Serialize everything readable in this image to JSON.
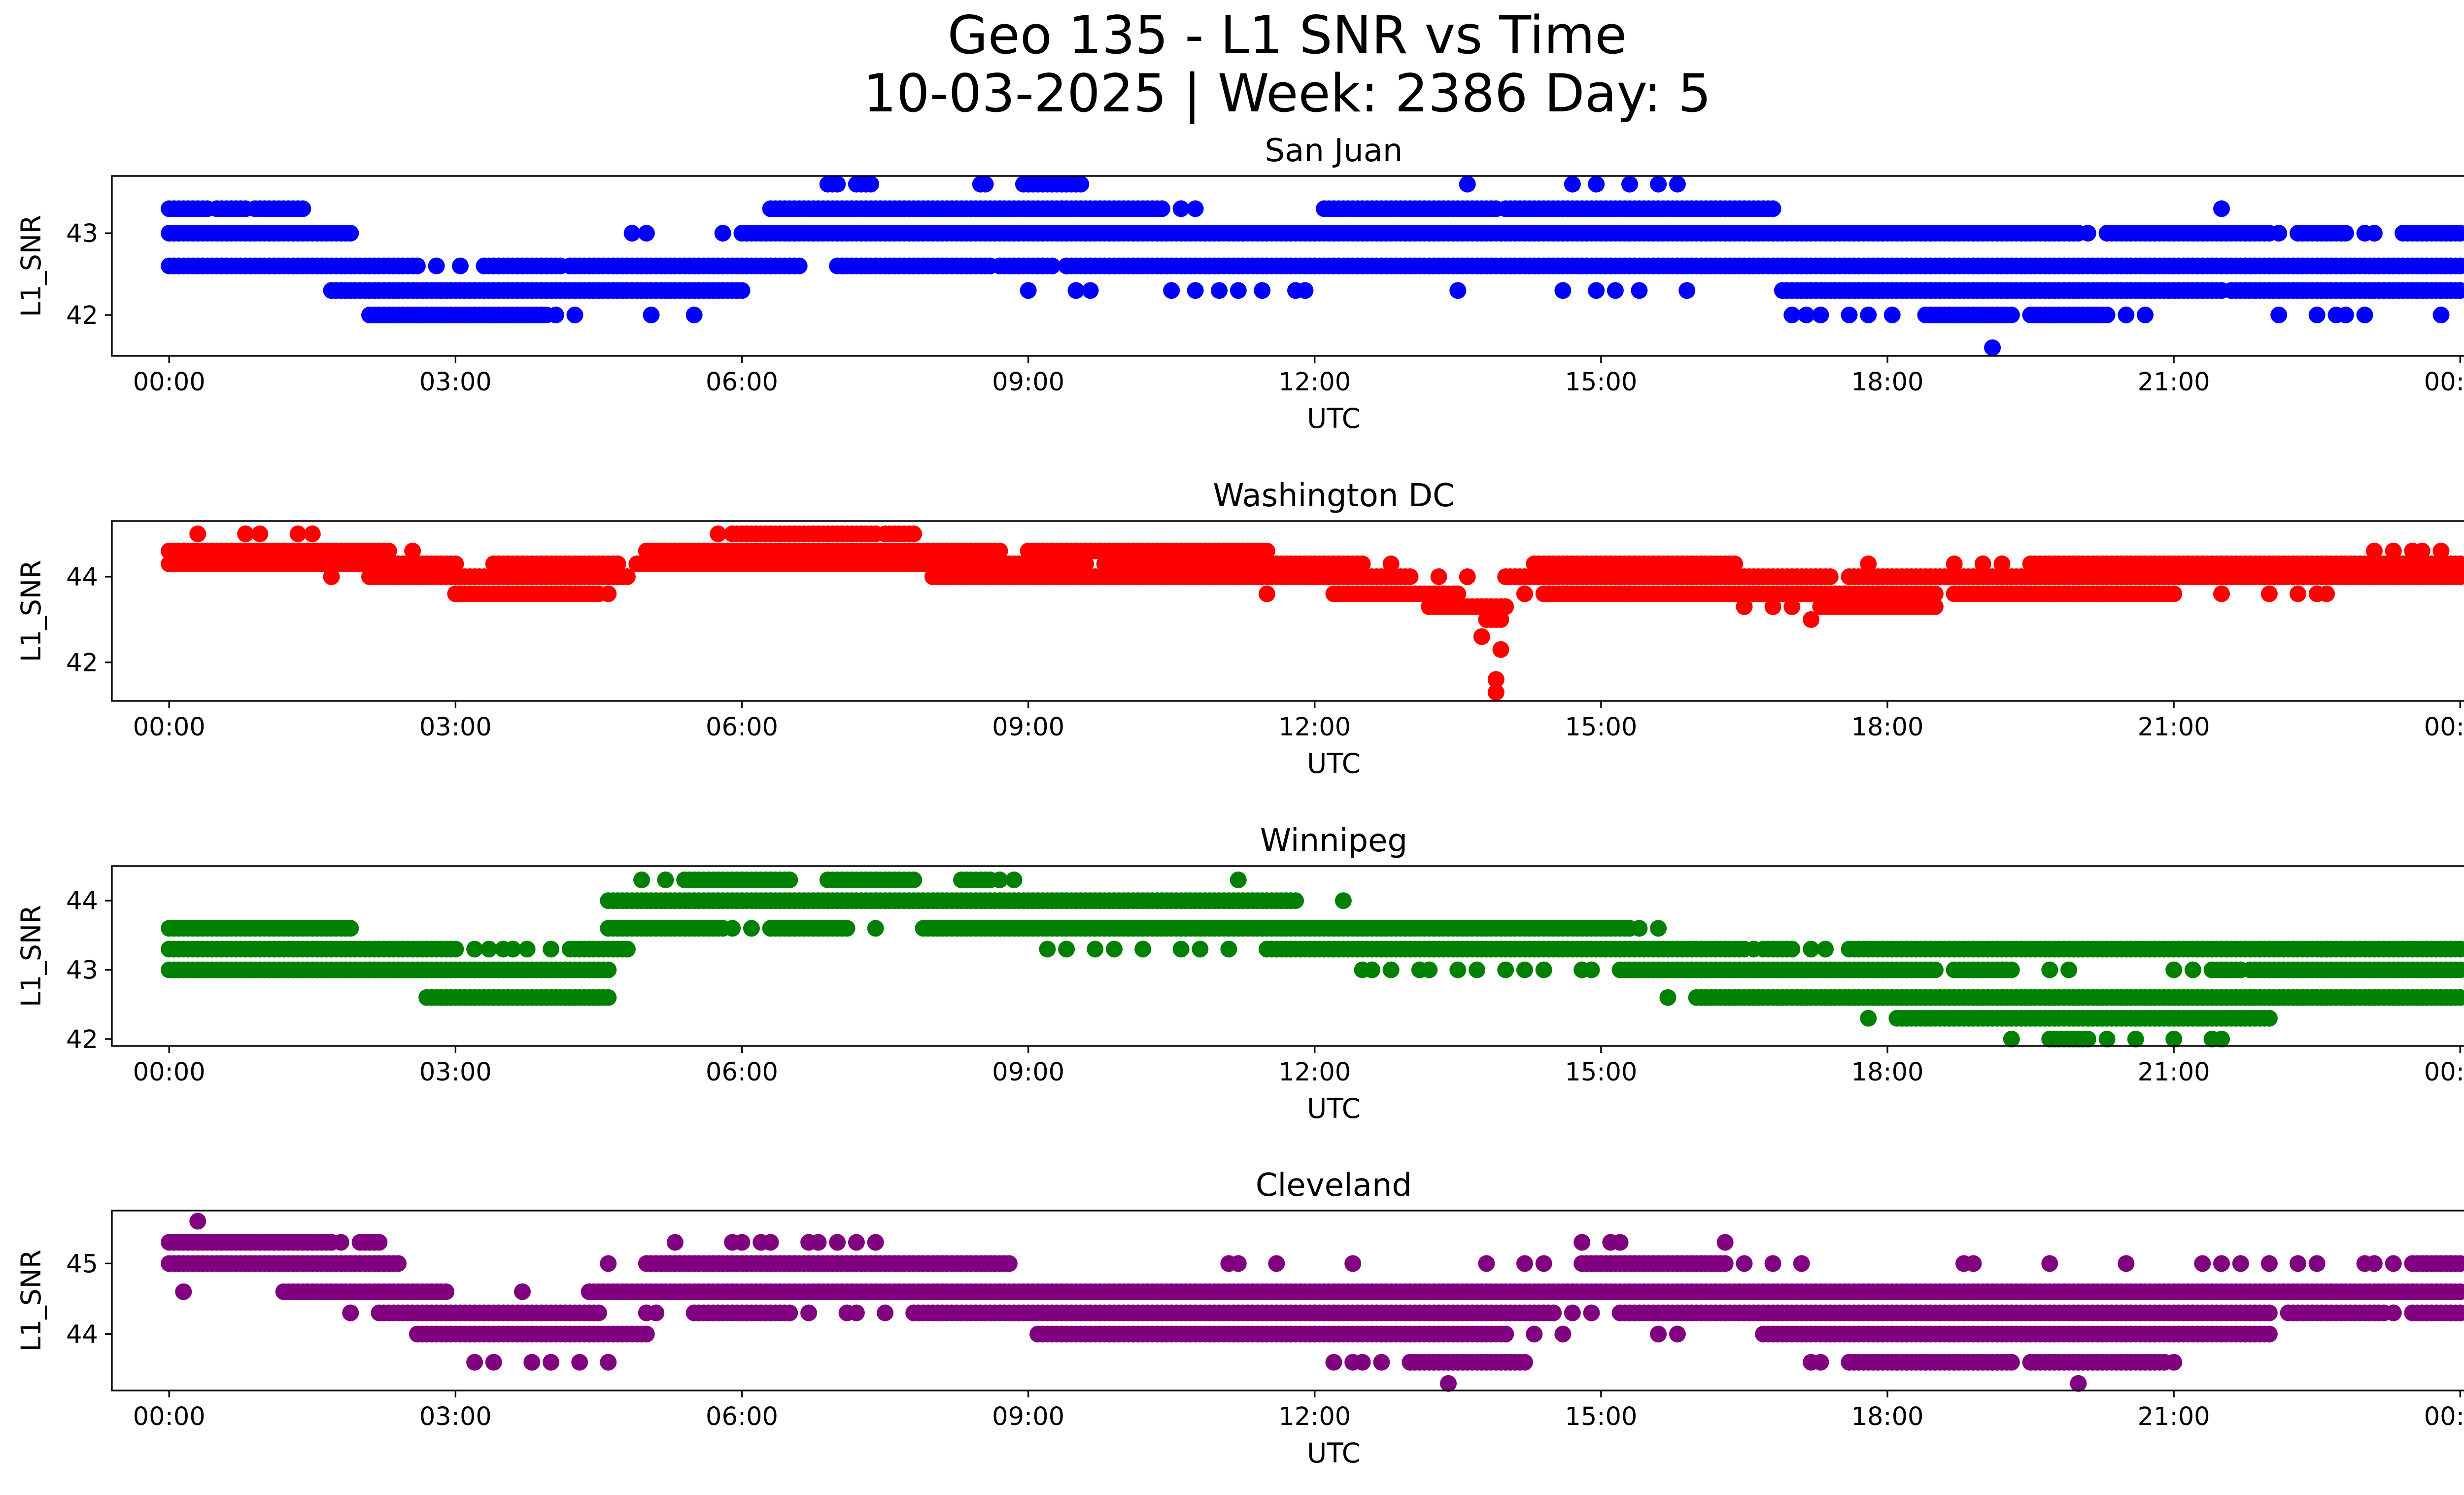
{
  "figure": {
    "title_line1": "Geo 135 - L1 SNR vs Time",
    "title_line2": "10-03-2025 | Week: 2386 Day: 5"
  },
  "chart_data": [
    {
      "type": "scatter",
      "title": "San Juan",
      "xlabel": "UTC",
      "ylabel": "L1_SNR",
      "color": "#0000ff",
      "xlim": [
        -0.6,
        25.0
      ],
      "ylim": [
        41.5,
        43.7
      ],
      "xticks": [
        0,
        3,
        6,
        9,
        12,
        15,
        18,
        21,
        24
      ],
      "xticklabels": [
        "00:00",
        "03:00",
        "06:00",
        "09:00",
        "12:00",
        "15:00",
        "18:00",
        "21:00",
        "00:00"
      ],
      "yticks": [
        42,
        43
      ],
      "yticklabels": [
        "42",
        "43"
      ],
      "bands": [
        {
          "y": 43.6,
          "segments": [
            [
              6.9,
              7.0
            ],
            [
              7.2,
              7.35
            ],
            [
              8.5,
              8.55
            ],
            [
              8.95,
              9.55
            ]
          ],
          "points": [
            13.6,
            14.7,
            14.95,
            15.3,
            15.6,
            15.8
          ]
        },
        {
          "y": 43.3,
          "segments": [
            [
              0.0,
              0.4
            ],
            [
              0.5,
              0.8
            ],
            [
              0.9,
              1.4
            ],
            [
              6.3,
              10.4
            ],
            [
              12.1,
              13.9
            ],
            [
              14.0,
              16.8
            ]
          ],
          "points": [
            10.6,
            10.75,
            21.5
          ]
        },
        {
          "y": 43.0,
          "segments": [
            [
              0.0,
              1.9
            ],
            [
              6.0,
              20.0
            ],
            [
              20.3,
              22.0
            ],
            [
              22.3,
              22.8
            ],
            [
              23.4,
              24.0
            ]
          ],
          "points": [
            4.85,
            5.0,
            5.8,
            20.1,
            22.1,
            23.0,
            23.1
          ]
        },
        {
          "y": 42.6,
          "segments": [
            [
              0.0,
              2.6
            ],
            [
              3.3,
              4.1
            ],
            [
              4.2,
              6.6
            ],
            [
              7.0,
              8.6
            ],
            [
              8.7,
              9.25
            ],
            [
              9.4,
              24.0
            ]
          ],
          "points": [
            2.8,
            3.05
          ]
        },
        {
          "y": 42.3,
          "segments": [
            [
              1.7,
              6.0
            ],
            [
              16.9,
              21.5
            ],
            [
              21.6,
              24.0
            ]
          ],
          "points": [
            9.0,
            9.5,
            9.65,
            10.5,
            10.75,
            11.0,
            11.2,
            11.45,
            11.8,
            11.9,
            13.5,
            14.6,
            14.95,
            15.15,
            15.4,
            15.9
          ]
        },
        {
          "y": 42.0,
          "segments": [
            [
              2.1,
              3.95
            ],
            [
              18.4,
              19.3
            ],
            [
              19.5,
              20.3
            ]
          ],
          "points": [
            4.05,
            4.25,
            5.05,
            5.5,
            17.0,
            17.15,
            17.3,
            17.6,
            17.8,
            18.05,
            20.5,
            20.7,
            22.1,
            22.5,
            22.7,
            22.8,
            23.0,
            23.8
          ]
        },
        {
          "y": 41.6,
          "segments": [],
          "points": [
            19.1
          ]
        }
      ]
    },
    {
      "type": "scatter",
      "title": "Washington DC",
      "xlabel": "UTC",
      "ylabel": "L1_SNR",
      "color": "#ff0000",
      "xlim": [
        -0.6,
        25.0
      ],
      "ylim": [
        41.1,
        45.3
      ],
      "xticks": [
        0,
        3,
        6,
        9,
        12,
        15,
        18,
        21,
        24
      ],
      "xticklabels": [
        "00:00",
        "03:00",
        "06:00",
        "09:00",
        "12:00",
        "15:00",
        "18:00",
        "21:00",
        "00:00"
      ],
      "yticks": [
        42,
        44
      ],
      "yticklabels": [
        "42",
        "44"
      ],
      "bands": [
        {
          "y": 45.0,
          "segments": [
            [
              5.9,
              7.4
            ],
            [
              7.5,
              7.8
            ]
          ],
          "points": [
            0.3,
            0.8,
            0.95,
            1.35,
            1.5,
            5.75
          ]
        },
        {
          "y": 44.6,
          "segments": [
            [
              0.0,
              2.3
            ],
            [
              5.0,
              8.7
            ],
            [
              9.0,
              11.5
            ]
          ],
          "points": [
            2.55,
            23.1,
            23.3,
            23.5,
            23.6,
            23.8
          ]
        },
        {
          "y": 44.3,
          "segments": [
            [
              0.0,
              2.2
            ],
            [
              2.3,
              3.0
            ],
            [
              3.4,
              4.7
            ],
            [
              4.9,
              9.6
            ],
            [
              9.8,
              12.5
            ],
            [
              14.3,
              16.4
            ],
            [
              19.5,
              24.0
            ]
          ],
          "points": [
            12.8,
            17.8,
            18.7,
            19.0,
            19.2
          ]
        },
        {
          "y": 44.0,
          "segments": [
            [
              2.1,
              4.8
            ],
            [
              8.0,
              13.0
            ],
            [
              14.0,
              17.4
            ],
            [
              17.6,
              24.0
            ]
          ],
          "points": [
            1.7,
            13.3,
            13.6
          ]
        },
        {
          "y": 43.6,
          "segments": [
            [
              3.0,
              4.5
            ],
            [
              12.2,
              13.5
            ],
            [
              14.4,
              18.5
            ],
            [
              18.7,
              21.0
            ]
          ],
          "points": [
            4.6,
            11.5,
            14.2,
            21.5,
            22.0,
            22.3,
            22.5,
            22.6
          ]
        },
        {
          "y": 43.3,
          "segments": [
            [
              13.2,
              14.0
            ],
            [
              17.3,
              18.5
            ]
          ],
          "points": [
            16.5,
            16.8,
            17.0
          ]
        },
        {
          "y": 43.0,
          "segments": [
            [
              13.8,
              13.95
            ]
          ],
          "points": [
            17.2
          ]
        },
        {
          "y": 42.6,
          "segments": [],
          "points": [
            13.75
          ]
        },
        {
          "y": 42.3,
          "segments": [],
          "points": [
            13.95
          ]
        },
        {
          "y": 41.6,
          "segments": [],
          "points": [
            13.9
          ]
        },
        {
          "y": 41.3,
          "segments": [],
          "points": [
            13.9
          ]
        }
      ]
    },
    {
      "type": "scatter",
      "title": "Winnipeg",
      "xlabel": "UTC",
      "ylabel": "L1_SNR",
      "color": "#008000",
      "xlim": [
        -0.6,
        25.0
      ],
      "ylim": [
        41.9,
        44.5
      ],
      "xticks": [
        0,
        3,
        6,
        9,
        12,
        15,
        18,
        21,
        24
      ],
      "xticklabels": [
        "00:00",
        "03:00",
        "06:00",
        "09:00",
        "12:00",
        "15:00",
        "18:00",
        "21:00",
        "00:00"
      ],
      "yticks": [
        42,
        43,
        44
      ],
      "yticklabels": [
        "42",
        "43",
        "44"
      ],
      "bands": [
        {
          "y": 44.3,
          "segments": [
            [
              5.4,
              6.5
            ],
            [
              6.9,
              7.8
            ],
            [
              8.3,
              8.6
            ]
          ],
          "points": [
            4.95,
            5.2,
            8.7,
            8.85,
            11.2
          ]
        },
        {
          "y": 44.0,
          "segments": [
            [
              4.6,
              11.8
            ]
          ],
          "points": [
            12.3
          ]
        },
        {
          "y": 43.6,
          "segments": [
            [
              0.0,
              1.9
            ],
            [
              4.6,
              5.8
            ],
            [
              6.3,
              7.1
            ],
            [
              7.9,
              15.3
            ]
          ],
          "points": [
            5.9,
            6.1,
            7.4,
            15.4,
            15.6
          ]
        },
        {
          "y": 43.3,
          "segments": [
            [
              0.0,
              3.0
            ],
            [
              4.2,
              4.8
            ],
            [
              11.5,
              16.5
            ],
            [
              16.7,
              17.0
            ],
            [
              17.6,
              24.0
            ]
          ],
          "points": [
            3.2,
            3.35,
            3.5,
            3.6,
            3.75,
            4.0,
            9.2,
            9.4,
            9.7,
            9.9,
            10.2,
            10.6,
            10.8,
            11.1,
            16.6,
            17.2,
            17.35,
            21.9,
            22.6,
            22.9
          ]
        },
        {
          "y": 43.0,
          "segments": [
            [
              0.0,
              4.6
            ],
            [
              15.2,
              18.5
            ],
            [
              18.7,
              19.3
            ],
            [
              21.4,
              21.7
            ],
            [
              21.8,
              24.0
            ]
          ],
          "points": [
            12.5,
            12.6,
            12.8,
            13.1,
            13.2,
            13.5,
            13.7,
            14.0,
            14.2,
            14.4,
            14.8,
            14.9,
            19.7,
            19.9,
            21.0,
            21.2
          ]
        },
        {
          "y": 42.6,
          "segments": [
            [
              2.7,
              4.6
            ],
            [
              16.0,
              24.0
            ]
          ],
          "points": [
            15.7
          ]
        },
        {
          "y": 42.3,
          "segments": [
            [
              18.1,
              22.0
            ]
          ],
          "points": [
            17.8
          ]
        },
        {
          "y": 42.0,
          "segments": [
            [
              19.7,
              20.1
            ]
          ],
          "points": [
            19.3,
            20.3,
            20.6,
            21.0,
            21.4,
            21.5
          ]
        }
      ]
    },
    {
      "type": "scatter",
      "title": "Cleveland",
      "xlabel": "UTC",
      "ylabel": "L1_SNR",
      "color": "#800080",
      "xlim": [
        -0.6,
        25.0
      ],
      "ylim": [
        43.2,
        45.75
      ],
      "xticks": [
        0,
        3,
        6,
        9,
        12,
        15,
        18,
        21,
        24
      ],
      "xticklabels": [
        "00:00",
        "03:00",
        "06:00",
        "09:00",
        "12:00",
        "15:00",
        "18:00",
        "21:00",
        "00:00"
      ],
      "yticks": [
        44,
        45
      ],
      "yticklabels": [
        "44",
        "45"
      ],
      "bands": [
        {
          "y": 45.6,
          "segments": [],
          "points": [
            0.3
          ]
        },
        {
          "y": 45.3,
          "segments": [
            [
              0.0,
              1.7
            ],
            [
              2.0,
              2.2
            ]
          ],
          "points": [
            1.8,
            5.3,
            5.9,
            6.0,
            6.2,
            6.3,
            6.7,
            6.8,
            7.0,
            7.2,
            7.4,
            14.8,
            15.1,
            15.2,
            16.3
          ]
        },
        {
          "y": 45.0,
          "segments": [
            [
              0.0,
              2.4
            ],
            [
              5.0,
              8.8
            ],
            [
              14.8,
              16.3
            ],
            [
              23.5,
              24.0
            ]
          ],
          "points": [
            4.6,
            11.1,
            11.2,
            11.6,
            12.4,
            13.8,
            14.2,
            14.4,
            16.5,
            16.8,
            17.1,
            18.8,
            18.9,
            19.7,
            20.5,
            21.3,
            21.5,
            21.7,
            22.0,
            22.3,
            22.5,
            23.0,
            23.1,
            23.3
          ]
        },
        {
          "y": 44.6,
          "segments": [
            [
              1.2,
              2.9
            ],
            [
              4.4,
              24.0
            ]
          ],
          "points": [
            0.15,
            3.7
          ]
        },
        {
          "y": 44.3,
          "segments": [
            [
              2.2,
              4.5
            ],
            [
              5.5,
              6.5
            ],
            [
              7.8,
              14.5
            ],
            [
              15.2,
              22.0
            ],
            [
              22.2,
              23.2
            ],
            [
              23.5,
              24.0
            ]
          ],
          "points": [
            1.9,
            5.0,
            5.1,
            6.7,
            7.1,
            7.2,
            7.5,
            12.0,
            12.2,
            14.7,
            14.9,
            23.3
          ]
        },
        {
          "y": 44.0,
          "segments": [
            [
              2.6,
              5.0
            ],
            [
              9.1,
              14.0
            ],
            [
              16.7,
              22.0
            ]
          ],
          "points": [
            14.3,
            14.6,
            15.6,
            15.8
          ]
        },
        {
          "y": 43.6,
          "segments": [
            [
              13.0,
              14.2
            ],
            [
              17.6,
              19.3
            ],
            [
              19.5,
              20.9
            ]
          ],
          "points": [
            3.2,
            3.4,
            3.8,
            4.0,
            4.3,
            4.6,
            12.2,
            12.4,
            12.5,
            12.7,
            13.0,
            17.2,
            17.3,
            17.6,
            18.1,
            18.2,
            18.4,
            18.5,
            18.7,
            19.1,
            21.0
          ]
        },
        {
          "y": 43.3,
          "segments": [],
          "points": [
            13.4,
            20.0
          ]
        }
      ]
    }
  ]
}
